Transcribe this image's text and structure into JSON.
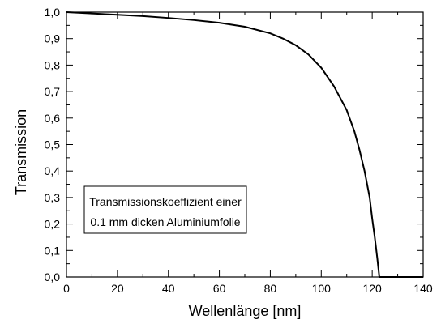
{
  "chart_data": {
    "type": "line",
    "title": "",
    "xlabel": "Wellenlänge [nm]",
    "ylabel": "Transmission",
    "xlim": [
      0,
      140
    ],
    "ylim": [
      0,
      1
    ],
    "grid": false,
    "x_ticks": [
      0,
      20,
      40,
      60,
      80,
      100,
      120,
      140
    ],
    "y_ticks": [
      0.0,
      0.1,
      0.2,
      0.3,
      0.4,
      0.5,
      0.6,
      0.7,
      0.8,
      0.9,
      1.0
    ],
    "x_tick_labels": [
      "0",
      "20",
      "40",
      "60",
      "80",
      "100",
      "120",
      "140"
    ],
    "y_tick_labels": [
      "0,0",
      "0,1",
      "0,2",
      "0,3",
      "0,4",
      "0,5",
      "0,6",
      "0,7",
      "0,8",
      "0,9",
      "1,0"
    ],
    "annotation": {
      "lines": [
        "Transmissionskoeffizient einer",
        "0.1 mm dicken Aluminiumfolie"
      ]
    },
    "series": [
      {
        "color": "#000000",
        "points": [
          [
            0,
            1.0
          ],
          [
            10,
            0.995
          ],
          [
            20,
            0.99
          ],
          [
            30,
            0.985
          ],
          [
            40,
            0.978
          ],
          [
            50,
            0.97
          ],
          [
            60,
            0.96
          ],
          [
            70,
            0.945
          ],
          [
            80,
            0.92
          ],
          [
            85,
            0.9
          ],
          [
            90,
            0.875
          ],
          [
            95,
            0.84
          ],
          [
            100,
            0.79
          ],
          [
            105,
            0.72
          ],
          [
            110,
            0.63
          ],
          [
            113,
            0.55
          ],
          [
            115,
            0.48
          ],
          [
            117,
            0.4
          ],
          [
            119,
            0.3
          ],
          [
            120,
            0.22
          ],
          [
            121,
            0.15
          ],
          [
            122,
            0.07
          ],
          [
            122.8,
            0.0
          ],
          [
            125,
            0.0
          ],
          [
            140,
            0.0
          ]
        ]
      }
    ]
  }
}
